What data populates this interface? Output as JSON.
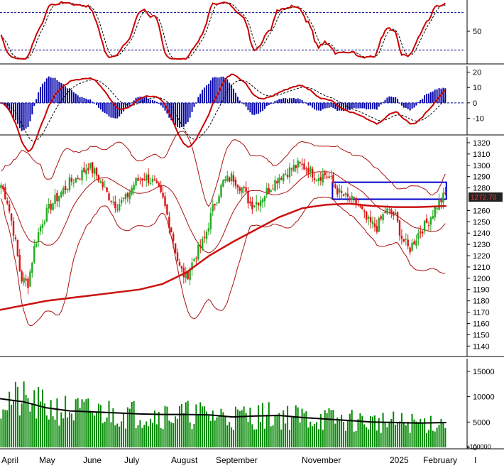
{
  "chart_data": {
    "type": "candlestick",
    "x_ticks": [
      "April",
      "May",
      "June",
      "July",
      "August",
      "September",
      "November",
      "2025",
      "February"
    ],
    "truncated_x_tick": "I",
    "colors": {
      "up": "#22aa22",
      "down": "#dd1111",
      "ma200": "#cc1111",
      "bollinger": "#aa1111",
      "volume": "#008800",
      "volume_ma": "#000000",
      "box": "#0000cc",
      "stoch_k": "#cc0000",
      "stoch_d": "#000000",
      "macd_hist": "#0000aa"
    },
    "panels": [
      {
        "name": "stochastic",
        "y_ticks": [
          50
        ],
        "guide_levels": [
          80,
          20
        ],
        "ylim": [
          0,
          100
        ]
      },
      {
        "name": "macd",
        "y_ticks": [
          20,
          10,
          0,
          -10
        ],
        "ylim": [
          -20,
          24
        ]
      },
      {
        "name": "price",
        "y_ticks": [
          1320,
          1310,
          1300,
          1290,
          1280,
          1260,
          1250,
          1240,
          1230,
          1220,
          1210,
          1200,
          1190,
          1180,
          1170,
          1160,
          1150,
          1140
        ],
        "last_value_label": "1272.70",
        "ylim": [
          1132,
          1325
        ],
        "box": {
          "x_start": 0.715,
          "x_end": 0.96,
          "y_low": 1270,
          "y_high": 1285
        }
      },
      {
        "name": "volume",
        "y_ticks": [
          15000,
          10000,
          5000,
          0
        ],
        "unit_label": "x100000",
        "ylim": [
          0,
          17500
        ]
      }
    ],
    "price_path": {
      "x": [
        0,
        0.015,
        0.03,
        0.045,
        0.06,
        0.075,
        0.09,
        0.11,
        0.13,
        0.15,
        0.17,
        0.19,
        0.21,
        0.23,
        0.25,
        0.27,
        0.29,
        0.31,
        0.33,
        0.35,
        0.37,
        0.385,
        0.4,
        0.42,
        0.44,
        0.46,
        0.48,
        0.5,
        0.52,
        0.54,
        0.56,
        0.58,
        0.6,
        0.62,
        0.64,
        0.66,
        0.68,
        0.7,
        0.715,
        0.73,
        0.75,
        0.77,
        0.79,
        0.81,
        0.83,
        0.85,
        0.865,
        0.88,
        0.9,
        0.92,
        0.94,
        0.96
      ],
      "close": [
        1285,
        1270,
        1240,
        1200,
        1195,
        1230,
        1250,
        1265,
        1275,
        1285,
        1290,
        1300,
        1290,
        1275,
        1265,
        1270,
        1285,
        1290,
        1285,
        1270,
        1240,
        1210,
        1200,
        1220,
        1235,
        1265,
        1285,
        1290,
        1280,
        1265,
        1270,
        1280,
        1290,
        1295,
        1300,
        1298,
        1290,
        1292,
        1285,
        1275,
        1270,
        1265,
        1250,
        1245,
        1260,
        1255,
        1235,
        1225,
        1240,
        1250,
        1265,
        1275
      ]
    },
    "ma200": {
      "x": [
        0,
        0.1,
        0.2,
        0.3,
        0.35,
        0.4,
        0.45,
        0.5,
        0.55,
        0.6,
        0.65,
        0.7,
        0.75,
        0.8,
        0.85,
        0.9,
        0.96
      ],
      "y": [
        1172,
        1180,
        1185,
        1190,
        1195,
        1205,
        1220,
        1232,
        1243,
        1254,
        1262,
        1265,
        1266,
        1264,
        1263,
        1263,
        1264
      ]
    },
    "volume_ma": {
      "x": [
        0,
        0.05,
        0.1,
        0.15,
        0.2,
        0.25,
        0.3,
        0.35,
        0.4,
        0.45,
        0.5,
        0.55,
        0.6,
        0.65,
        0.7,
        0.75,
        0.8,
        0.85,
        0.9,
        0.96
      ],
      "y": [
        9600,
        9000,
        7800,
        7200,
        7000,
        6800,
        6600,
        6500,
        6500,
        6400,
        6000,
        6200,
        6300,
        5900,
        5600,
        5300,
        5000,
        4900,
        4800,
        4900
      ]
    }
  }
}
